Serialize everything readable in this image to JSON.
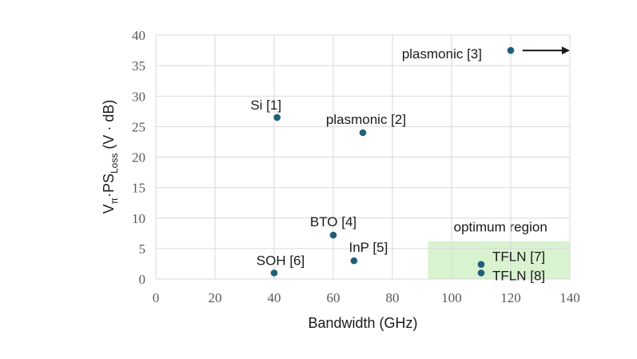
{
  "chart_data": {
    "type": "scatter",
    "title": "",
    "xlabel": "Bandwidth (GHz)",
    "ylabel": {
      "prefix": "V",
      "pi_sub": "π",
      "dot": "·PS",
      "loss_sub": "Loss",
      "units": " (V · dB)"
    },
    "xlim": [
      0,
      140
    ],
    "ylim": [
      0,
      40
    ],
    "x_ticks": [
      0,
      20,
      40,
      60,
      80,
      100,
      120,
      140
    ],
    "y_ticks": [
      0,
      5,
      10,
      15,
      20,
      25,
      30,
      35,
      40
    ],
    "grid": true,
    "marker_color": "#1f5f7a",
    "points": [
      {
        "x": 41,
        "y": 26.5,
        "label": "Si [1]"
      },
      {
        "x": 70,
        "y": 24,
        "label": "plasmonic [2]"
      },
      {
        "x": 120,
        "y": 37.5,
        "label": "plasmonic [3]"
      },
      {
        "x": 60,
        "y": 7.2,
        "label": "BTO [4]"
      },
      {
        "x": 67,
        "y": 3,
        "label": "InP [5]"
      },
      {
        "x": 40,
        "y": 1,
        "label": "SOH [6]"
      },
      {
        "x": 110,
        "y": 2.4,
        "label": "TFLN [7]"
      },
      {
        "x": 110,
        "y": 1,
        "label": "TFLN [8]"
      }
    ],
    "region": {
      "label": "optimum region",
      "x_range": [
        92,
        140
      ],
      "y_range": [
        0,
        6.2
      ],
      "color": "#d9f2d0"
    },
    "arrow": {
      "from_x": 124,
      "to_x": 140,
      "y": 37.5
    }
  }
}
